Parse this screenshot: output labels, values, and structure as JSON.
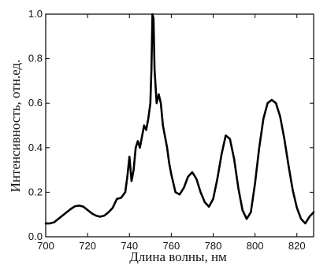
{
  "chart_data": {
    "type": "line",
    "title": "",
    "xlabel": "Длина волны, нм",
    "ylabel": "Интенсивность, отн.ед.",
    "xlim": [
      700,
      828
    ],
    "ylim": [
      0.0,
      1.0
    ],
    "x_ticks": [
      700,
      720,
      740,
      760,
      780,
      800,
      820
    ],
    "y_ticks": [
      0.0,
      0.2,
      0.4,
      0.6,
      0.8,
      1.0
    ],
    "x_tick_labels": [
      "700",
      "720",
      "740",
      "760",
      "780",
      "800",
      "820"
    ],
    "y_tick_labels": [
      "0.0",
      "0.2",
      "0.4",
      "0.6",
      "0.8",
      "1.0"
    ],
    "grid": false,
    "legend": "none",
    "series": [
      {
        "color": "#000000",
        "x": [
          700,
          702,
          704,
          706,
          708,
          710,
          712,
          714,
          716,
          718,
          720,
          722,
          724,
          726,
          728,
          730,
          732,
          734,
          736,
          738,
          739,
          740,
          741,
          742,
          743,
          744,
          745,
          746,
          747,
          748,
          749,
          750,
          750.5,
          751,
          751.5,
          752,
          753,
          754,
          755,
          756,
          757,
          758,
          759,
          760,
          762,
          764,
          766,
          768,
          770,
          772,
          774,
          776,
          778,
          780,
          782,
          784,
          786,
          788,
          790,
          792,
          794,
          796,
          798,
          800,
          802,
          804,
          806,
          808,
          810,
          812,
          814,
          816,
          818,
          820,
          822,
          824,
          826,
          828
        ],
        "y": [
          0.06,
          0.06,
          0.065,
          0.08,
          0.095,
          0.11,
          0.125,
          0.137,
          0.14,
          0.135,
          0.12,
          0.105,
          0.095,
          0.09,
          0.095,
          0.11,
          0.13,
          0.17,
          0.175,
          0.2,
          0.27,
          0.36,
          0.25,
          0.3,
          0.4,
          0.43,
          0.4,
          0.45,
          0.5,
          0.48,
          0.53,
          0.6,
          0.75,
          1.0,
          0.98,
          0.75,
          0.6,
          0.64,
          0.6,
          0.5,
          0.45,
          0.4,
          0.33,
          0.28,
          0.2,
          0.19,
          0.22,
          0.27,
          0.29,
          0.26,
          0.2,
          0.155,
          0.135,
          0.17,
          0.26,
          0.37,
          0.455,
          0.44,
          0.35,
          0.22,
          0.12,
          0.08,
          0.11,
          0.24,
          0.4,
          0.53,
          0.6,
          0.615,
          0.6,
          0.54,
          0.44,
          0.32,
          0.21,
          0.13,
          0.08,
          0.06,
          0.09,
          0.11
        ]
      }
    ]
  }
}
